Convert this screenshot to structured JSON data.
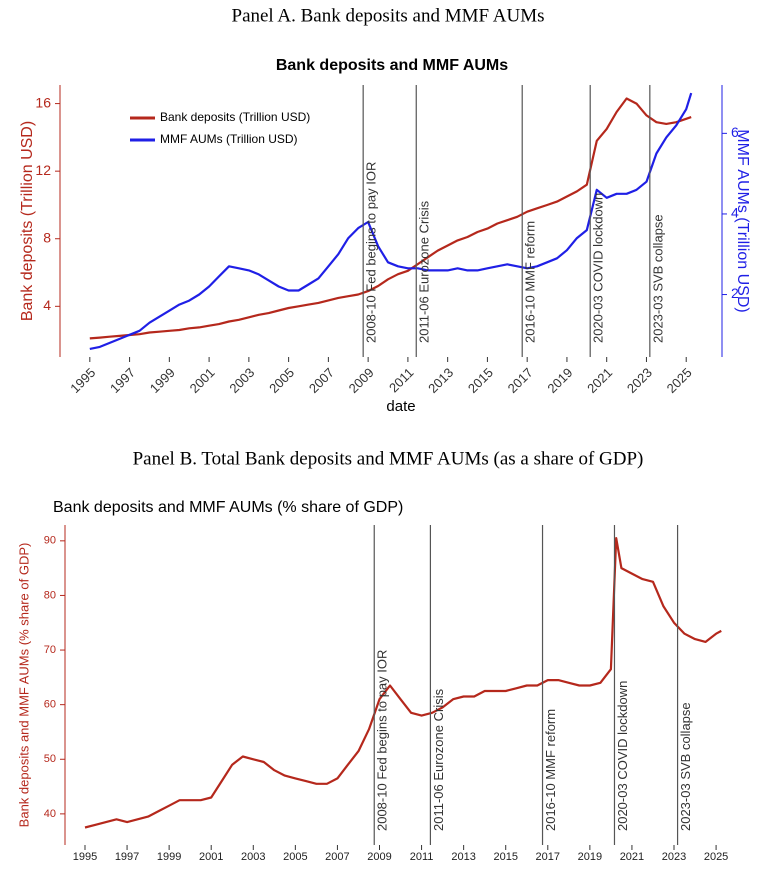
{
  "chart_data": [
    {
      "type": "line",
      "panel_title": "Panel A. Bank deposits and MMF AUMs",
      "title": "Bank deposits and MMF AUMs",
      "xlabel": "date",
      "ylabel": "Bank deposits (Trillion USD)",
      "y2label": "MMF AUMs (Trillion USD)",
      "x": [
        1995,
        1995.5,
        1996,
        1996.5,
        1997,
        1997.5,
        1998,
        1998.5,
        1999,
        1999.5,
        2000,
        2000.5,
        2001,
        2001.5,
        2002,
        2002.5,
        2003,
        2003.5,
        2004,
        2004.5,
        2005,
        2005.5,
        2006,
        2006.5,
        2007,
        2007.5,
        2008,
        2008.5,
        2009,
        2009.5,
        2010,
        2010.5,
        2011,
        2011.5,
        2012,
        2012.5,
        2013,
        2013.5,
        2014,
        2014.5,
        2015,
        2015.5,
        2016,
        2016.5,
        2017,
        2017.5,
        2018,
        2018.5,
        2019,
        2019.5,
        2020,
        2020.5,
        2021,
        2021.5,
        2022,
        2022.5,
        2023,
        2023.5,
        2024,
        2024.5,
        2025,
        2025.25
      ],
      "series": [
        {
          "name": "Bank deposits (Trillion USD)",
          "color": "#b5281c",
          "values": [
            2.1,
            2.15,
            2.2,
            2.25,
            2.3,
            2.35,
            2.45,
            2.5,
            2.55,
            2.6,
            2.7,
            2.75,
            2.85,
            2.95,
            3.1,
            3.2,
            3.35,
            3.5,
            3.6,
            3.75,
            3.9,
            4.0,
            4.1,
            4.2,
            4.35,
            4.5,
            4.6,
            4.7,
            4.9,
            5.2,
            5.6,
            5.9,
            6.1,
            6.5,
            6.9,
            7.3,
            7.6,
            7.9,
            8.1,
            8.4,
            8.6,
            8.9,
            9.1,
            9.3,
            9.6,
            9.8,
            10.0,
            10.2,
            10.5,
            10.8,
            11.2,
            13.8,
            14.5,
            15.5,
            16.3,
            16.0,
            15.3,
            14.9,
            14.8,
            14.9,
            15.1,
            15.2
          ]
        },
        {
          "name": "MMF AUMs (Trillion USD)",
          "color": "#1f1fe6",
          "axis": "y2",
          "values": [
            0.65,
            0.7,
            0.8,
            0.9,
            1.0,
            1.1,
            1.3,
            1.45,
            1.6,
            1.75,
            1.85,
            2.0,
            2.2,
            2.45,
            2.7,
            2.65,
            2.6,
            2.5,
            2.35,
            2.2,
            2.1,
            2.1,
            2.25,
            2.4,
            2.7,
            3.0,
            3.4,
            3.65,
            3.8,
            3.2,
            2.8,
            2.7,
            2.65,
            2.65,
            2.6,
            2.6,
            2.6,
            2.65,
            2.6,
            2.6,
            2.65,
            2.7,
            2.75,
            2.7,
            2.65,
            2.7,
            2.8,
            2.9,
            3.1,
            3.4,
            3.6,
            4.6,
            4.4,
            4.5,
            4.5,
            4.6,
            4.8,
            5.5,
            5.9,
            6.2,
            6.6,
            7.0
          ]
        }
      ],
      "xlim": [
        1993.5,
        2026.8
      ],
      "xticks": [
        1995,
        1997,
        1999,
        2001,
        2003,
        2005,
        2007,
        2009,
        2011,
        2013,
        2015,
        2017,
        2019,
        2021,
        2023,
        2025
      ],
      "ylim": [
        1.0,
        17.1
      ],
      "yticks": [
        4,
        8,
        12,
        16
      ],
      "y2lim": [
        0.45,
        7.2
      ],
      "y2ticks": [
        2,
        4,
        6
      ],
      "legend": "upper left",
      "events": [
        {
          "x": 2008.75,
          "label": "2008-10 Fed begins to pay IOR"
        },
        {
          "x": 2011.42,
          "label": "2011-06 Eurozone Crisis"
        },
        {
          "x": 2016.75,
          "label": "2016-10 MMF reform"
        },
        {
          "x": 2020.17,
          "label": "2020-03 COVID lockdown"
        },
        {
          "x": 2023.17,
          "label": "2023-03 SVB collapse"
        }
      ]
    },
    {
      "type": "line",
      "panel_title": "Panel B. Total Bank deposits and MMF AUMs (as a share of GDP)",
      "title": "Bank deposits and MMF AUMs (% share of GDP)",
      "ylabel": "Bank deposits and MMF AUMs (% share of GDP)",
      "x": [
        1995,
        1995.5,
        1996,
        1996.5,
        1997,
        1997.5,
        1998,
        1998.5,
        1999,
        1999.5,
        2000,
        2000.5,
        2001,
        2001.5,
        2002,
        2002.5,
        2003,
        2003.5,
        2004,
        2004.5,
        2005,
        2005.5,
        2006,
        2006.5,
        2007,
        2007.5,
        2008,
        2008.5,
        2009,
        2009.5,
        2010,
        2010.5,
        2011,
        2011.5,
        2012,
        2012.5,
        2013,
        2013.5,
        2014,
        2014.5,
        2015,
        2015.5,
        2016,
        2016.5,
        2017,
        2017.5,
        2018,
        2018.5,
        2019,
        2019.5,
        2020,
        2020.25,
        2020.5,
        2021,
        2021.5,
        2022,
        2022.5,
        2023,
        2023.5,
        2024,
        2024.5,
        2025,
        2025.25
      ],
      "series": [
        {
          "color": "#b5281c",
          "values": [
            37.5,
            38,
            38.5,
            39,
            38.5,
            39,
            39.5,
            40.5,
            41.5,
            42.5,
            42.5,
            42.5,
            43,
            46,
            49,
            50.5,
            50,
            49.5,
            48,
            47,
            46.5,
            46,
            45.5,
            45.5,
            46.5,
            49,
            51.5,
            55.5,
            61,
            63.5,
            61,
            58.5,
            58,
            58.5,
            59.5,
            61,
            61.5,
            61.5,
            62.5,
            62.5,
            62.5,
            63,
            63.5,
            63.5,
            64.5,
            64.5,
            64,
            63.5,
            63.5,
            64,
            66.5,
            90.5,
            85,
            84,
            83,
            82.5,
            78,
            75,
            73,
            72,
            71.5,
            73,
            73.5
          ]
        }
      ],
      "xlim": [
        1994.05,
        2026.85
      ],
      "xticks": [
        1995,
        1997,
        1999,
        2001,
        2003,
        2005,
        2007,
        2009,
        2011,
        2013,
        2015,
        2017,
        2019,
        2021,
        2023,
        2025
      ],
      "ylim": [
        34.3,
        92.9
      ],
      "yticks": [
        40,
        50,
        60,
        70,
        80,
        90
      ],
      "events": [
        {
          "x": 2008.75,
          "label": "2008-10 Fed begins to pay IOR"
        },
        {
          "x": 2011.42,
          "label": "2011-06 Eurozone Crisis"
        },
        {
          "x": 2016.75,
          "label": "2016-10 MMF reform"
        },
        {
          "x": 2020.17,
          "label": "2020-03 COVID lockdown"
        },
        {
          "x": 2023.17,
          "label": "2023-03 SVB collapse"
        }
      ]
    }
  ]
}
